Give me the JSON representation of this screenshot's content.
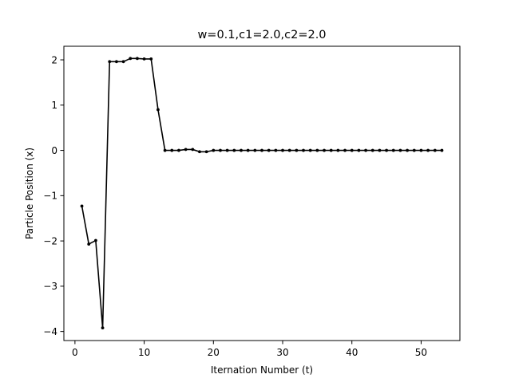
{
  "chart_data": {
    "type": "line",
    "title": "w=0.1,c1=2.0,c2=2.0",
    "xlabel": "Iternation Number (t)",
    "ylabel": "Particle Position (x)",
    "xlim": [
      -1.6,
      55.6
    ],
    "ylim": [
      -4.2,
      2.3
    ],
    "xticks": [
      0,
      10,
      20,
      30,
      40,
      50
    ],
    "xtick_labels": [
      "0",
      "10",
      "20",
      "30",
      "40",
      "50"
    ],
    "yticks": [
      -4,
      -3,
      -2,
      -1,
      0,
      1,
      2
    ],
    "ytick_labels": [
      "−4",
      "−3",
      "−2",
      "−1",
      "0",
      "1",
      "2"
    ],
    "grid": false,
    "legend": "none",
    "colors": {
      "line": "#000000",
      "axes": "#000000",
      "background": "#ffffff"
    },
    "series": [
      {
        "x": [
          1,
          2,
          3,
          4,
          5,
          6,
          7,
          8,
          9,
          10,
          11,
          12,
          13,
          14,
          15,
          16,
          17,
          18,
          19,
          20,
          21,
          22,
          23,
          24,
          25,
          26,
          27,
          28,
          29,
          30,
          31,
          32,
          33,
          34,
          35,
          36,
          37,
          38,
          39,
          40,
          41,
          42,
          43,
          44,
          45,
          46,
          47,
          48,
          49,
          50,
          51,
          52,
          53
        ],
        "values": [
          -1.23,
          -2.07,
          -1.99,
          -3.92,
          1.96,
          1.96,
          1.96,
          2.03,
          2.03,
          2.02,
          2.02,
          0.9,
          0.0,
          0.0,
          0.0,
          0.02,
          0.02,
          -0.03,
          -0.03,
          0.0,
          0.0,
          0.0,
          0.0,
          0.0,
          0.0,
          0.0,
          0.0,
          0.0,
          0.0,
          0.0,
          0.0,
          0.0,
          0.0,
          0.0,
          0.0,
          0.0,
          0.0,
          0.0,
          0.0,
          0.0,
          0.0,
          0.0,
          0.0,
          0.0,
          0.0,
          0.0,
          0.0,
          0.0,
          0.0,
          0.0,
          0.0,
          0.0,
          0.0
        ]
      }
    ]
  }
}
